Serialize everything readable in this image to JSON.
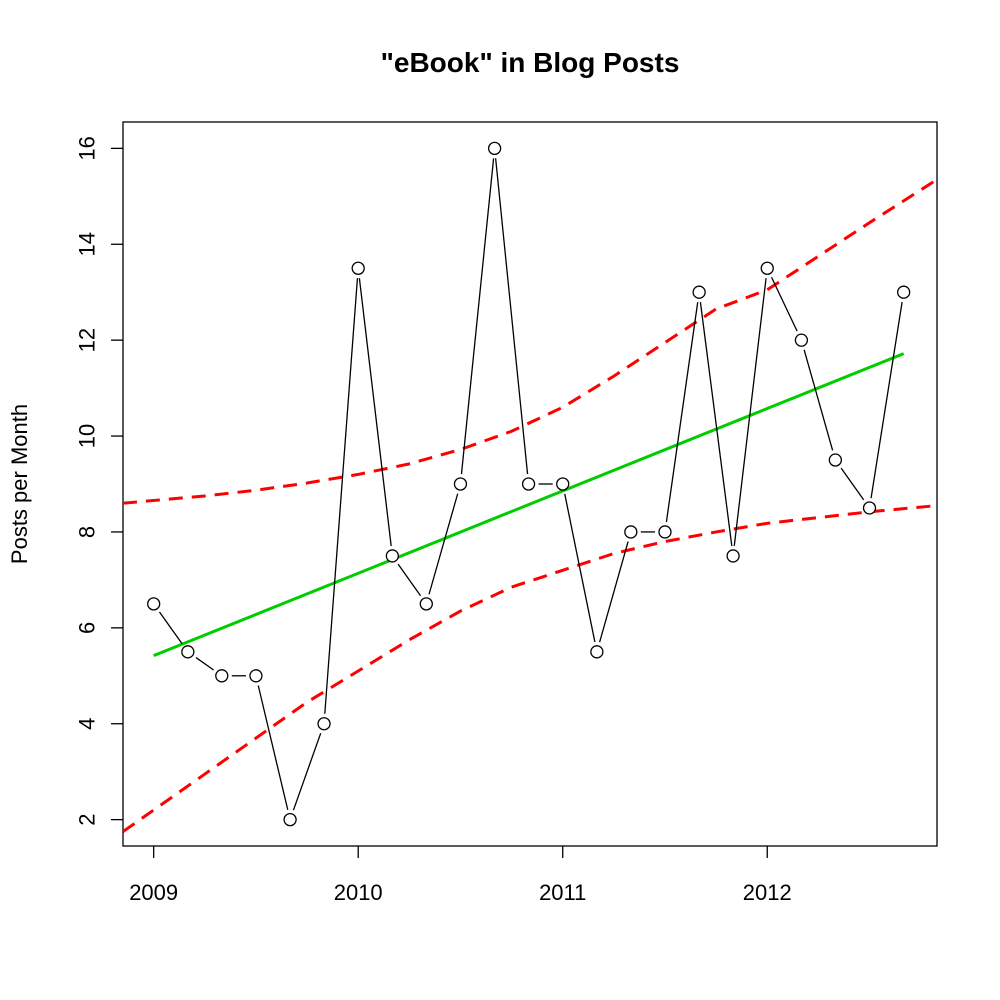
{
  "chart_data": {
    "type": "line",
    "title": "\"eBook\" in Blog Posts",
    "xlabel": "",
    "ylabel": "Posts per Month",
    "x_ticks": [
      2009,
      2010,
      2011,
      2012
    ],
    "y_ticks": [
      2,
      4,
      6,
      8,
      10,
      12,
      14,
      16
    ],
    "xlim": [
      2008.85,
      2012.83
    ],
    "ylim": [
      1.45,
      16.55
    ],
    "series": [
      {
        "x": [
          2009.0,
          2009.167,
          2009.333,
          2009.5,
          2009.667,
          2009.833,
          2010.0,
          2010.167,
          2010.333,
          2010.5,
          2010.667,
          2010.833,
          2011.0,
          2011.167,
          2011.333,
          2011.5,
          2011.667,
          2011.833,
          2012.0,
          2012.167,
          2012.333,
          2012.5,
          2012.667
        ],
        "values": [
          6.5,
          5.5,
          5,
          5,
          2,
          4,
          13.5,
          7.5,
          6.5,
          9,
          16,
          9,
          9,
          5.5,
          8,
          8,
          13,
          7.5,
          13.5,
          12,
          9.5,
          8.5,
          13
        ]
      }
    ],
    "trend": {
      "x": [
        2009.0,
        2012.667
      ],
      "values": [
        5.42,
        11.72
      ],
      "color": "#00cd00"
    },
    "bands": {
      "color": "#ff0000",
      "upper": {
        "x": [
          2008.85,
          2009.25,
          2009.5,
          2009.75,
          2010.0,
          2010.25,
          2010.5,
          2010.75,
          2011.0,
          2011.25,
          2011.5,
          2011.75,
          2012.0,
          2012.25,
          2012.5,
          2012.83
        ],
        "values": [
          8.6,
          8.75,
          8.87,
          9.02,
          9.2,
          9.42,
          9.72,
          10.1,
          10.6,
          11.25,
          11.95,
          12.65,
          13.05,
          13.75,
          14.45,
          15.35
        ]
      },
      "lower": {
        "x": [
          2008.85,
          2009.0,
          2009.25,
          2009.5,
          2009.75,
          2010.0,
          2010.25,
          2010.5,
          2010.75,
          2011.0,
          2011.25,
          2011.5,
          2011.75,
          2012.0,
          2012.25,
          2012.5,
          2012.83
        ],
        "values": [
          1.75,
          2.2,
          2.95,
          3.7,
          4.45,
          5.1,
          5.75,
          6.35,
          6.85,
          7.2,
          7.55,
          7.8,
          8.0,
          8.18,
          8.3,
          8.42,
          8.55
        ]
      }
    },
    "grid": false,
    "legend": "none"
  }
}
